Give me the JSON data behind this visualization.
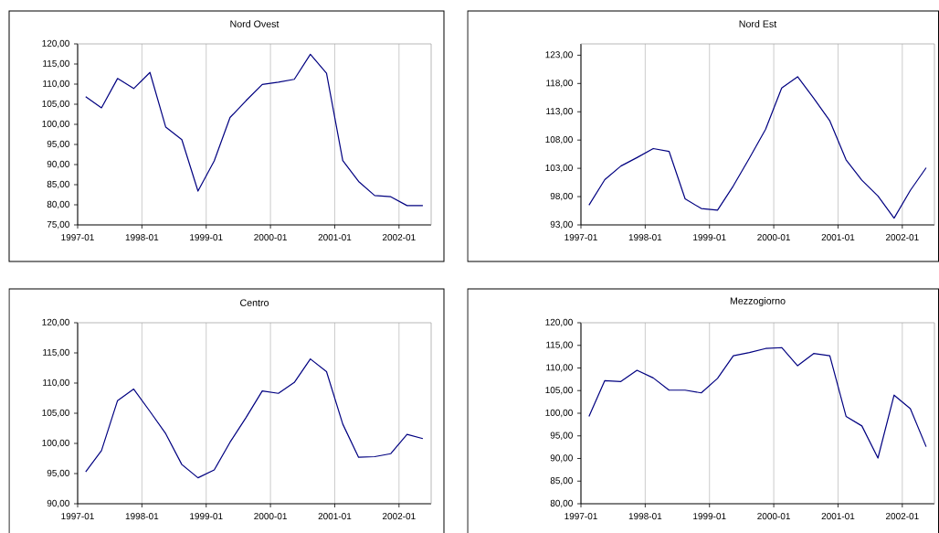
{
  "chart_data": [
    {
      "type": "line",
      "title": "Nord Ovest",
      "grid": "x",
      "x": [
        "1997-02-15",
        "1997-05-15",
        "1997-08-15",
        "1997-11-15",
        "1998-02-15",
        "1998-05-15",
        "1998-08-15",
        "1998-11-15",
        "1999-02-15",
        "1999-05-15",
        "1999-08-15",
        "1999-11-15",
        "2000-02-15",
        "2000-05-15",
        "2000-08-15",
        "2000-11-15",
        "2001-02-15",
        "2001-05-15",
        "2001-08-15",
        "2001-11-15",
        "2002-02-15",
        "2002-05-15"
      ],
      "series": [
        {
          "color": "#000080",
          "values": [
            106.9,
            104.1,
            111.4,
            108.9,
            112.9,
            99.3,
            96.2,
            83.4,
            90.9,
            101.7,
            105.9,
            109.9,
            110.5,
            111.2,
            117.4,
            112.7,
            91.0,
            85.8,
            82.3,
            82.0,
            79.8,
            79.8
          ]
        }
      ],
      "xlim": [
        "1997-01",
        "2002-07"
      ],
      "xticks": [
        "1997-01",
        "1998-01",
        "1999-01",
        "2000-01",
        "2001-01",
        "2002-01"
      ],
      "ylim": [
        75,
        120
      ],
      "yticks": [
        {
          "value": 75,
          "label": "75,00"
        },
        {
          "value": 80,
          "label": "80,00"
        },
        {
          "value": 85,
          "label": "85,00"
        },
        {
          "value": 90,
          "label": "90,00"
        },
        {
          "value": 95,
          "label": "95,00"
        },
        {
          "value": 100,
          "label": "100,00"
        },
        {
          "value": 105,
          "label": "105,00"
        },
        {
          "value": 110,
          "label": "110,00"
        },
        {
          "value": 115,
          "label": "115,00"
        },
        {
          "value": 120,
          "label": "120,00"
        }
      ]
    },
    {
      "type": "line",
      "title": "Nord Est",
      "grid": "x",
      "x": [
        "1997-02-15",
        "1997-05-15",
        "1997-08-15",
        "1997-11-15",
        "1998-02-15",
        "1998-05-15",
        "1998-08-15",
        "1998-11-15",
        "1999-02-15",
        "1999-05-15",
        "1999-08-15",
        "1999-11-15",
        "2000-02-15",
        "2000-05-15",
        "2000-08-15",
        "2000-11-15",
        "2001-02-15",
        "2001-05-15",
        "2001-08-15",
        "2001-11-15",
        "2002-02-15",
        "2002-05-15"
      ],
      "series": [
        {
          "color": "#000080",
          "values": [
            96.5,
            101.0,
            103.4,
            104.9,
            106.5,
            106.0,
            97.6,
            95.9,
            95.6,
            99.9,
            104.8,
            109.9,
            117.2,
            119.2,
            115.4,
            111.4,
            104.5,
            100.9,
            98.1,
            94.2,
            99.1,
            103.1
          ]
        }
      ],
      "xlim": [
        "1997-01",
        "2002-07"
      ],
      "xticks": [
        "1997-01",
        "1998-01",
        "1999-01",
        "2000-01",
        "2001-01",
        "2002-01"
      ],
      "ylim": [
        93,
        125
      ],
      "yticks": [
        {
          "value": 93,
          "label": "93,00"
        },
        {
          "value": 98,
          "label": "98,00"
        },
        {
          "value": 103,
          "label": "103,00"
        },
        {
          "value": 108,
          "label": "108,00"
        },
        {
          "value": 113,
          "label": "113,00"
        },
        {
          "value": 118,
          "label": "118,00"
        },
        {
          "value": 123,
          "label": "123,00"
        }
      ]
    },
    {
      "type": "line",
      "title": "Centro",
      "grid": "x",
      "x": [
        "1997-02-15",
        "1997-05-15",
        "1997-08-15",
        "1997-11-15",
        "1998-02-15",
        "1998-05-15",
        "1998-08-15",
        "1998-11-15",
        "1999-02-15",
        "1999-05-15",
        "1999-08-15",
        "1999-11-15",
        "2000-02-15",
        "2000-05-15",
        "2000-08-15",
        "2000-11-15",
        "2001-02-15",
        "2001-05-15",
        "2001-08-15",
        "2001-11-15",
        "2002-02-15",
        "2002-05-15"
      ],
      "series": [
        {
          "color": "#000080",
          "values": [
            95.3,
            98.8,
            107.1,
            109.0,
            105.3,
            101.6,
            96.5,
            94.3,
            95.6,
            100.2,
            104.3,
            108.7,
            108.3,
            110.1,
            114.0,
            111.9,
            103.2,
            97.7,
            97.8,
            98.3,
            101.5,
            100.8
          ]
        }
      ],
      "xlim": [
        "1997-01",
        "2002-07"
      ],
      "xticks": [
        "1997-01",
        "1998-01",
        "1999-01",
        "2000-01",
        "2001-01",
        "2002-01"
      ],
      "ylim": [
        90,
        120
      ],
      "yticks": [
        {
          "value": 90,
          "label": "90,00"
        },
        {
          "value": 95,
          "label": "95,00"
        },
        {
          "value": 100,
          "label": "100,00"
        },
        {
          "value": 105,
          "label": "105,00"
        },
        {
          "value": 110,
          "label": "110,00"
        },
        {
          "value": 115,
          "label": "115,00"
        },
        {
          "value": 120,
          "label": "120,00"
        }
      ]
    },
    {
      "type": "line",
      "title": "Mezzogiorno",
      "grid": "x",
      "x": [
        "1997-02-15",
        "1997-05-15",
        "1997-08-15",
        "1997-11-15",
        "1998-02-15",
        "1998-05-15",
        "1998-08-15",
        "1998-11-15",
        "1999-02-15",
        "1999-05-15",
        "1999-08-15",
        "1999-11-15",
        "2000-02-15",
        "2000-05-15",
        "2000-08-15",
        "2000-11-15",
        "2001-02-15",
        "2001-05-15",
        "2001-08-15",
        "2001-11-15",
        "2002-02-15",
        "2002-05-15"
      ],
      "series": [
        {
          "color": "#000080",
          "values": [
            99.3,
            107.2,
            107.0,
            109.5,
            107.8,
            105.1,
            105.1,
            104.5,
            107.7,
            112.7,
            113.4,
            114.3,
            114.5,
            110.5,
            113.2,
            112.7,
            99.3,
            97.2,
            90.1,
            104.0,
            101.0,
            92.6
          ]
        }
      ],
      "xlim": [
        "1997-01",
        "2002-07"
      ],
      "xticks": [
        "1997-01",
        "1998-01",
        "1999-01",
        "2000-01",
        "2001-01",
        "2002-01"
      ],
      "ylim": [
        80,
        120
      ],
      "yticks": [
        {
          "value": 80,
          "label": "80,00"
        },
        {
          "value": 85,
          "label": "85,00"
        },
        {
          "value": 90,
          "label": "90,00"
        },
        {
          "value": 95,
          "label": "95,00"
        },
        {
          "value": 100,
          "label": "100,00"
        },
        {
          "value": 105,
          "label": "105,00"
        },
        {
          "value": 110,
          "label": "110,00"
        },
        {
          "value": 115,
          "label": "115,00"
        },
        {
          "value": 120,
          "label": "120,00"
        }
      ]
    }
  ]
}
